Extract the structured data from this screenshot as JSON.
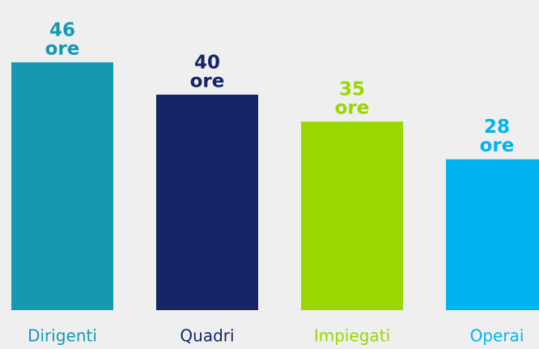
{
  "chart_data": {
    "type": "bar",
    "categories": [
      "Dirigenti",
      "Quadri",
      "Impiegati",
      "Operai"
    ],
    "values": [
      46,
      40,
      35,
      28
    ],
    "value_labels": [
      [
        "46",
        "ore"
      ],
      [
        "40",
        "ore"
      ],
      [
        "35",
        "ore"
      ],
      [
        "28",
        "ore"
      ]
    ],
    "colors": [
      "#1499b1",
      "#142566",
      "#9ad600",
      "#00b4f0"
    ],
    "ylim": [
      0,
      46
    ]
  }
}
